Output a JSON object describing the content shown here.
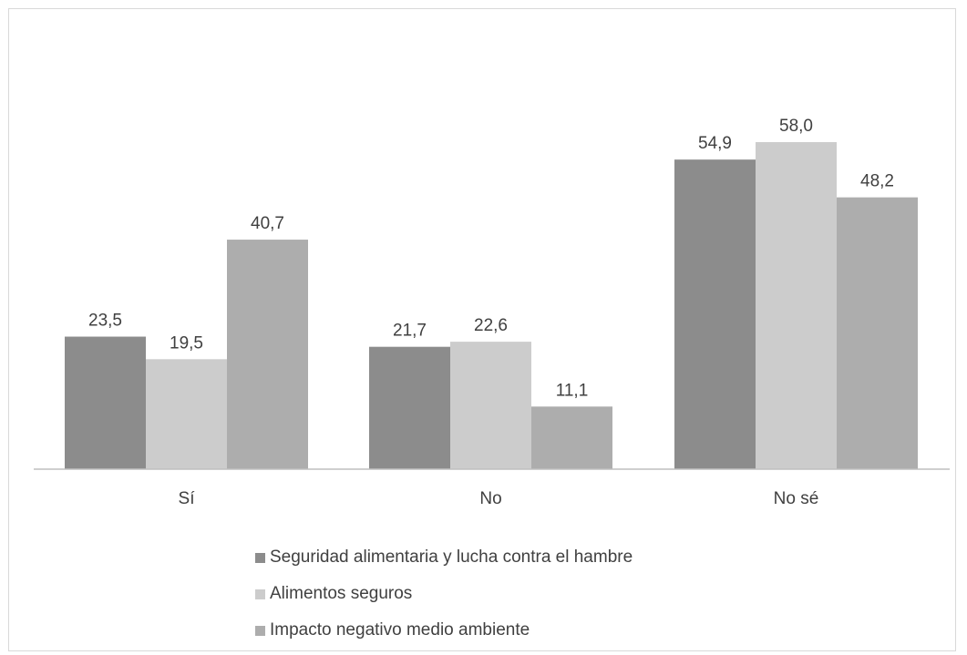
{
  "chart_data": {
    "type": "bar",
    "categories": [
      "Sí",
      "No",
      "No sé"
    ],
    "series": [
      {
        "name": "Seguridad alimentaria y lucha contra el hambre",
        "color": "#8c8c8c",
        "values": [
          23.5,
          21.7,
          54.9
        ],
        "labels": [
          "23,5",
          "21,7",
          "54,9"
        ]
      },
      {
        "name": "Alimentos seguros",
        "color": "#cccccc",
        "values": [
          19.5,
          22.6,
          58.0
        ],
        "labels": [
          "19,5",
          "22,6",
          "58,0"
        ]
      },
      {
        "name": "Impacto negativo medio ambiente",
        "color": "#adadad",
        "values": [
          40.7,
          11.1,
          48.2
        ],
        "labels": [
          "40,7",
          "11,1",
          "48,2"
        ]
      }
    ],
    "ylim": [
      0,
      70
    ],
    "grid": false,
    "legend_position": "bottom"
  }
}
